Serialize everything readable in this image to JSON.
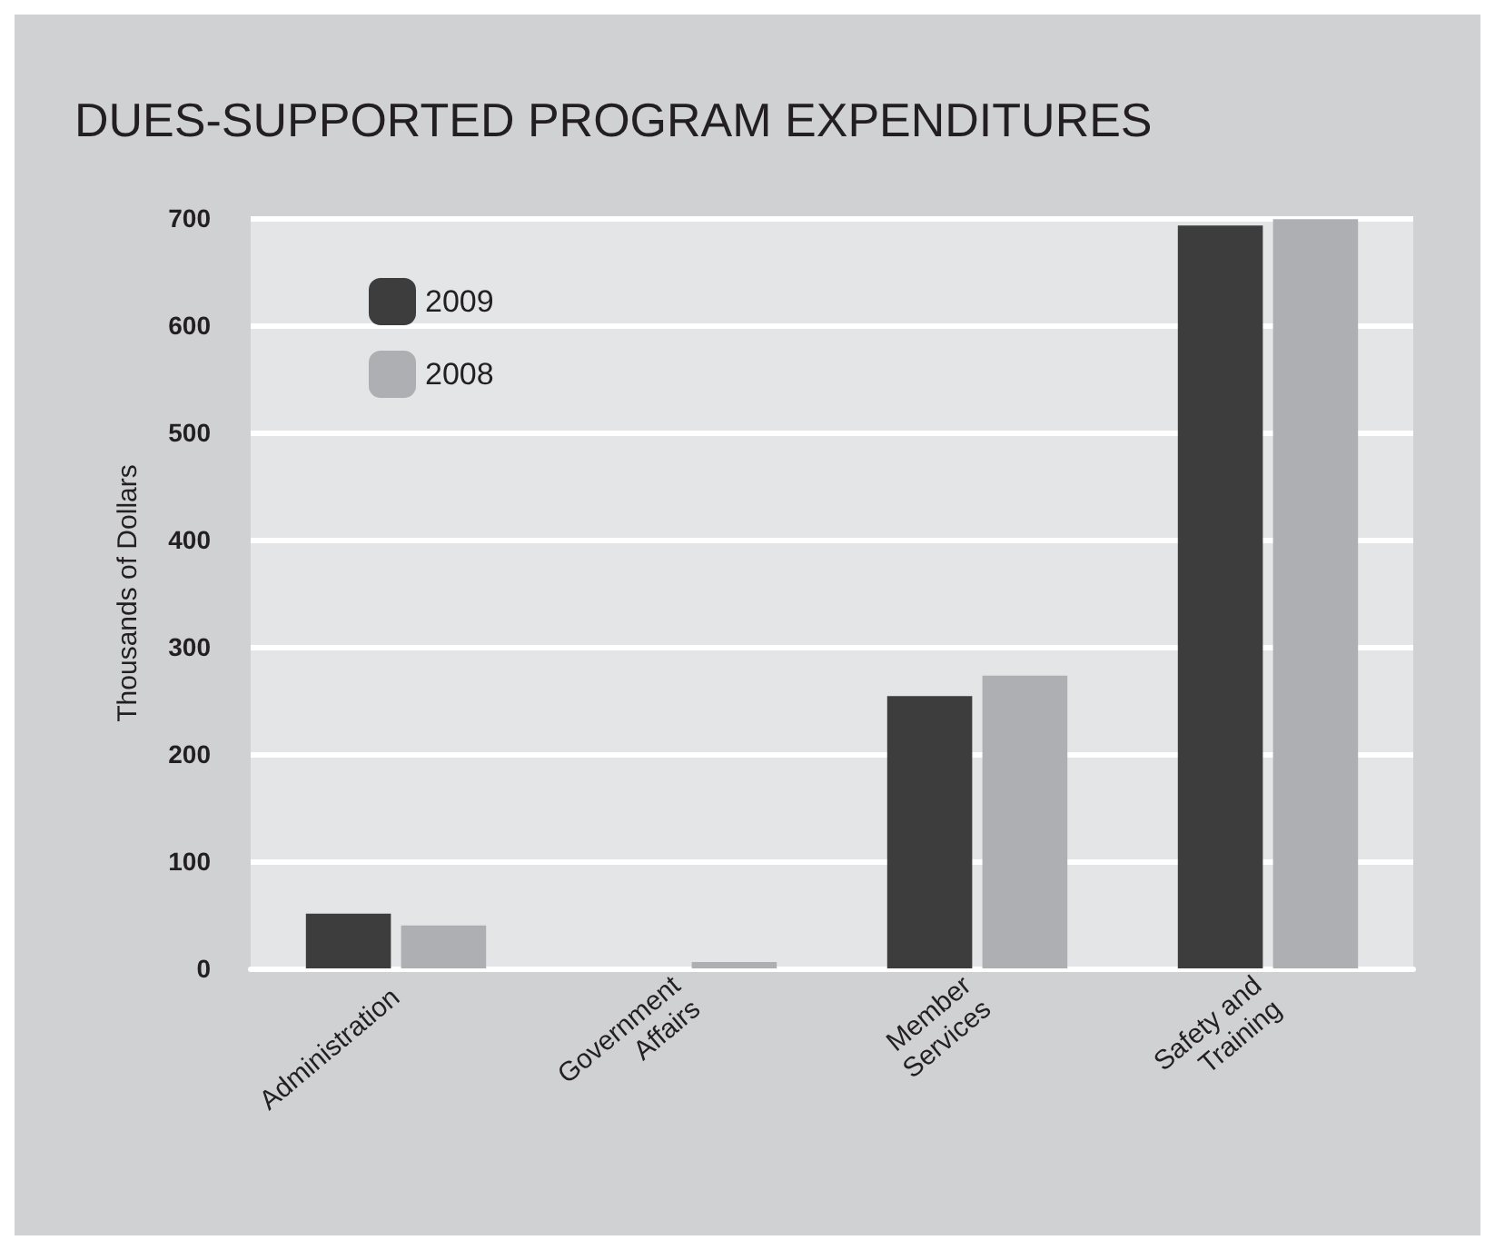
{
  "chart_data": {
    "type": "bar",
    "title": "DUES-SUPPORTED PROGRAM EXPENDITURES",
    "ylabel": "Thousands of Dollars",
    "categories": [
      "Administration",
      "Government\nAffairs",
      "Member\nServices",
      "Safety and\nTraining"
    ],
    "series": [
      {
        "name": "2009",
        "color": "#3d3d3d",
        "values": [
          51,
          0,
          254,
          693
        ]
      },
      {
        "name": "2008",
        "color": "#aeafb2",
        "values": [
          40,
          6,
          273,
          699
        ]
      }
    ],
    "ylim": [
      0,
      700
    ],
    "yticks": [
      0,
      100,
      200,
      300,
      400,
      500,
      600,
      700
    ],
    "grid": "y",
    "legend": "top left"
  }
}
